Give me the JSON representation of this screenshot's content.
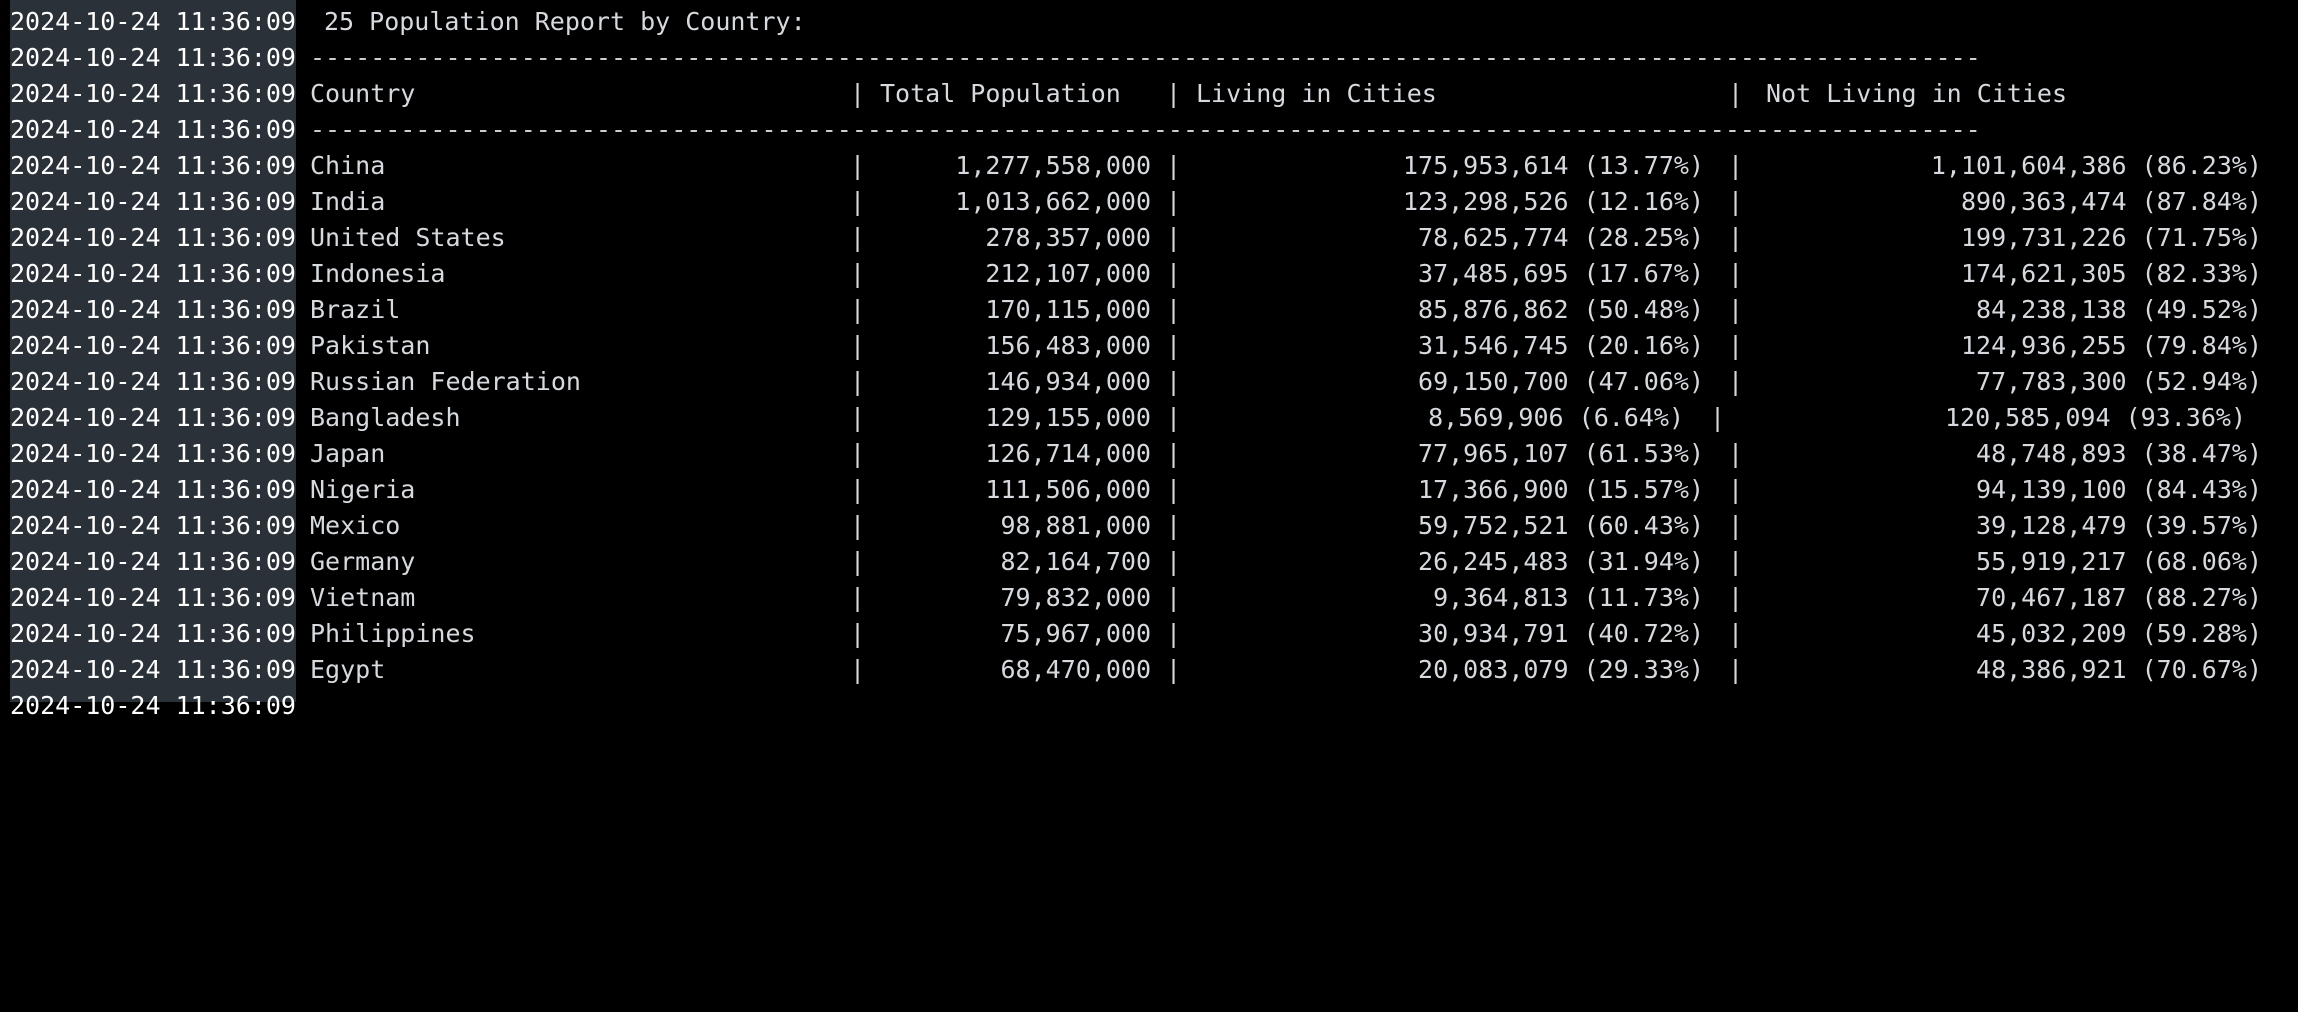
{
  "timestamp": "2024-10-24 11:36:09",
  "report_title": "25 Population Report by Country:",
  "divider": "---------------------------------------------------------------------------------------------------------------",
  "separator": "|",
  "headers": {
    "country": "Country",
    "total": "Total Population",
    "living": "Living in Cities",
    "not_living": "Not Living in Cities"
  },
  "rows": [
    {
      "country": "China",
      "total": "1,277,558,000",
      "living": "175,953,614 (13.77%)",
      "not_living": "1,101,604,386 (86.23%)"
    },
    {
      "country": "India",
      "total": "1,013,662,000",
      "living": "123,298,526 (12.16%)",
      "not_living": "890,363,474 (87.84%)"
    },
    {
      "country": "United States",
      "total": "278,357,000",
      "living": "78,625,774 (28.25%)",
      "not_living": "199,731,226 (71.75%)"
    },
    {
      "country": "Indonesia",
      "total": "212,107,000",
      "living": "37,485,695 (17.67%)",
      "not_living": "174,621,305 (82.33%)"
    },
    {
      "country": "Brazil",
      "total": "170,115,000",
      "living": "85,876,862 (50.48%)",
      "not_living": "84,238,138 (49.52%)"
    },
    {
      "country": "Pakistan",
      "total": "156,483,000",
      "living": "31,546,745 (20.16%)",
      "not_living": "124,936,255 (79.84%)"
    },
    {
      "country": "Russian Federation",
      "total": "146,934,000",
      "living": "69,150,700 (47.06%)",
      "not_living": "77,783,300 (52.94%)"
    },
    {
      "country": "Bangladesh",
      "total": "129,155,000",
      "living": "8,569,906 (6.64%)",
      "not_living": "120,585,094 (93.36%)"
    },
    {
      "country": "Japan",
      "total": "126,714,000",
      "living": "77,965,107 (61.53%)",
      "not_living": "48,748,893 (38.47%)"
    },
    {
      "country": "Nigeria",
      "total": "111,506,000",
      "living": "17,366,900 (15.57%)",
      "not_living": "94,139,100 (84.43%)"
    },
    {
      "country": "Mexico",
      "total": "98,881,000",
      "living": "59,752,521 (60.43%)",
      "not_living": "39,128,479 (39.57%)"
    },
    {
      "country": "Germany",
      "total": "82,164,700",
      "living": "26,245,483 (31.94%)",
      "not_living": "55,919,217 (68.06%)"
    },
    {
      "country": "Vietnam",
      "total": "79,832,000",
      "living": "9,364,813 (11.73%)",
      "not_living": "70,467,187 (88.27%)"
    },
    {
      "country": "Philippines",
      "total": "75,967,000",
      "living": "30,934,791 (40.72%)",
      "not_living": "45,032,209 (59.28%)"
    },
    {
      "country": "Egypt",
      "total": "68,470,000",
      "living": "20,083,079 (29.33%)",
      "not_living": "48,386,921 (70.67%)"
    }
  ],
  "trailing_timestamp": "2024-10-24 11:36:09",
  "colors": {
    "background": "#000000",
    "gutter": "#2b3138",
    "timestamp_text": "#ffffff",
    "text": "#d6dade"
  }
}
